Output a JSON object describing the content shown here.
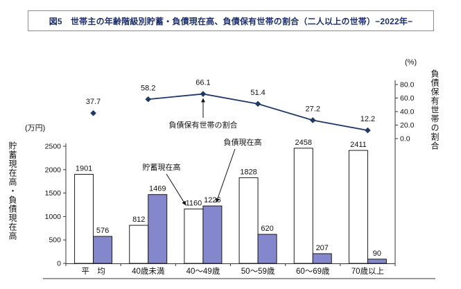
{
  "figure": {
    "title": "図5　世帯主の年齢階級別貯蓄・負債現在高、負債保有世帯の割合（二人以上の世帯）−2022年−"
  },
  "chart_data": {
    "type": "bar",
    "subtype": "grouped bars with line on secondary percent axis",
    "categories": [
      "平　均",
      "40歳未満",
      "40～49歳",
      "50～59歳",
      "60～69歳",
      "70歳以上"
    ],
    "series": [
      {
        "name": "貯蓄現在高",
        "type": "bar",
        "values": [
          1901,
          812,
          1160,
          1828,
          2458,
          2411
        ],
        "fill": "#ffffff",
        "stroke": "#1a1a1a"
      },
      {
        "name": "負債現在高",
        "type": "bar",
        "values": [
          576,
          1469,
          1226,
          620,
          207,
          90
        ],
        "fill": "#8487cb",
        "stroke": "#1a1a1a"
      },
      {
        "name": "負債保有世帯の割合",
        "type": "line",
        "values": [
          37.7,
          58.2,
          66.1,
          51.4,
          27.2,
          12.2
        ],
        "color": "#1f3864",
        "marker": "diamond",
        "note": "平均 point is an isolated marker; the line connects the five age classes only"
      }
    ],
    "left_axis": {
      "unit": "(万円)",
      "title": "貯蓄現在高・負債現在高",
      "ticks": [
        0,
        500,
        1000,
        1500,
        2000,
        2500
      ],
      "range": [
        0,
        2500
      ]
    },
    "right_axis": {
      "unit": "(%)",
      "title": "負債保有世帯の割合",
      "tick_labels": [
        "0.0",
        "20.0",
        "40.0",
        "60.0",
        "80.0"
      ],
      "range": [
        0,
        80
      ]
    },
    "annotations": [
      {
        "text": "負債保有世帯の割合",
        "target": "line point 66.1 (40～49歳)"
      },
      {
        "text": "貯蓄現在高",
        "target": "savings bar 1160 (40～49歳)"
      },
      {
        "text": "負債現在高",
        "target": "liabilities bar 1226 (40～49歳)"
      }
    ],
    "legend_position": "none",
    "grid": "off"
  }
}
